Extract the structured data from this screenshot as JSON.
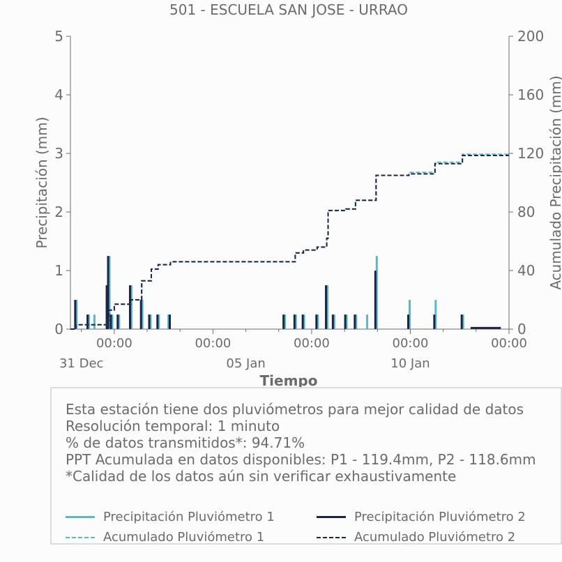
{
  "chart_data": {
    "type": "bar",
    "title": "501 - ESCUELA SAN JOSE - URRAO",
    "xlabel": "Tiempo",
    "ylabel_left": "Precipitación (mm)",
    "ylabel_right": "Acumulado Precipitación (mm)",
    "ylim_left": [
      0,
      5
    ],
    "ylim_right": [
      0,
      200
    ],
    "y_ticks_left": [
      "0",
      "1",
      "2",
      "3",
      "4",
      "5"
    ],
    "y_ticks_right": [
      "0",
      "40",
      "80",
      "120",
      "160",
      "200"
    ],
    "x_range_days": [
      "2023-12-30 16:00",
      "2024-01-13 00:00"
    ],
    "x_tick_labels_time": [
      "00:00",
      "00:00",
      "00:00",
      "00:00",
      "00:00"
    ],
    "x_tick_labels_date": [
      "31 Dec",
      "05 Jan",
      "10 Jan"
    ],
    "colors": {
      "p1": "#5bb8c4",
      "p2": "#1c2448"
    },
    "series": [
      {
        "name": "Precipitación Pluviómetro 1",
        "kind": "bar",
        "points": [
          [
            "2023-12-30 20:00",
            0.5
          ],
          [
            "2023-12-31 05:00",
            0.25
          ],
          [
            "2023-12-31 09:00",
            0.25
          ],
          [
            "2023-12-31 19:00",
            0.75
          ],
          [
            "2023-12-31 20:00",
            1.25
          ],
          [
            "2023-12-31 22:00",
            0.25
          ],
          [
            "2024-01-01 03:00",
            0.25
          ],
          [
            "2024-01-01 12:00",
            0.75
          ],
          [
            "2024-01-01 20:00",
            0.5
          ],
          [
            "2024-01-02 02:00",
            0.25
          ],
          [
            "2024-01-02 08:00",
            0.25
          ],
          [
            "2024-01-02 15:00",
            0.25
          ],
          [
            "2024-01-06 04:00",
            0.25
          ],
          [
            "2024-01-06 12:00",
            0.25
          ],
          [
            "2024-01-06 18:00",
            0.25
          ],
          [
            "2024-01-07 04:00",
            0.25
          ],
          [
            "2024-01-07 11:00",
            0.75
          ],
          [
            "2024-01-07 16:00",
            0.25
          ],
          [
            "2024-01-08 01:00",
            0.25
          ],
          [
            "2024-01-08 08:00",
            0.25
          ],
          [
            "2024-01-08 16:00",
            0.25
          ],
          [
            "2024-01-08 23:00",
            1.25
          ],
          [
            "2024-01-09 23:00",
            0.5
          ],
          [
            "2024-01-10 18:00",
            0.5
          ],
          [
            "2024-01-11 14:00",
            0.25
          ]
        ]
      },
      {
        "name": "Precipitación Pluviómetro 2",
        "kind": "bar",
        "points": [
          [
            "2023-12-30 20:00",
            0.5
          ],
          [
            "2023-12-31 05:00",
            0.25
          ],
          [
            "2023-12-31 19:00",
            0.75
          ],
          [
            "2023-12-31 20:00",
            1.25
          ],
          [
            "2023-12-31 22:00",
            0.25
          ],
          [
            "2024-01-01 03:00",
            0.25
          ],
          [
            "2024-01-01 12:00",
            0.75
          ],
          [
            "2024-01-01 20:00",
            0.5
          ],
          [
            "2024-01-02 02:00",
            0.25
          ],
          [
            "2024-01-02 08:00",
            0.25
          ],
          [
            "2024-01-02 17:00",
            0.25
          ],
          [
            "2024-01-06 04:00",
            0.25
          ],
          [
            "2024-01-06 12:00",
            0.25
          ],
          [
            "2024-01-06 18:00",
            0.25
          ],
          [
            "2024-01-07 04:00",
            0.25
          ],
          [
            "2024-01-07 11:00",
            0.75
          ],
          [
            "2024-01-07 16:00",
            0.25
          ],
          [
            "2024-01-08 01:00",
            0.25
          ],
          [
            "2024-01-08 08:00",
            0.25
          ],
          [
            "2024-01-08 23:00",
            1.0
          ],
          [
            "2024-01-09 23:00",
            0.25
          ],
          [
            "2024-01-10 18:00",
            0.25
          ],
          [
            "2024-01-11 14:00",
            0.25
          ]
        ]
      },
      {
        "name": "Acumulado Pluviómetro 1",
        "kind": "step",
        "points": [
          [
            "2023-12-30 16:00",
            0
          ],
          [
            "2023-12-30 20:00",
            3
          ],
          [
            "2023-12-31 19:00",
            6
          ],
          [
            "2023-12-31 20:00",
            13
          ],
          [
            "2024-01-01 00:00",
            17
          ],
          [
            "2024-01-01 12:00",
            20
          ],
          [
            "2024-01-01 20:00",
            33
          ],
          [
            "2024-01-02 03:00",
            41
          ],
          [
            "2024-01-02 08:00",
            44
          ],
          [
            "2024-01-02 17:00",
            46
          ],
          [
            "2024-01-06 04:00",
            46
          ],
          [
            "2024-01-06 12:00",
            52
          ],
          [
            "2024-01-06 18:00",
            54
          ],
          [
            "2024-01-07 04:00",
            56
          ],
          [
            "2024-01-07 11:00",
            62
          ],
          [
            "2024-01-07 12:00",
            81
          ],
          [
            "2024-01-08 01:00",
            82
          ],
          [
            "2024-01-08 08:00",
            88
          ],
          [
            "2024-01-08 23:00",
            105
          ],
          [
            "2024-01-09 23:00",
            107
          ],
          [
            "2024-01-10 18:00",
            114
          ],
          [
            "2024-01-11 14:00",
            119.4
          ],
          [
            "2024-01-13 00:00",
            119.4
          ]
        ]
      },
      {
        "name": "Acumulado Pluviómetro 2",
        "kind": "step",
        "points": [
          [
            "2023-12-30 16:00",
            0
          ],
          [
            "2023-12-30 20:00",
            3
          ],
          [
            "2023-12-31 19:00",
            6
          ],
          [
            "2023-12-31 20:00",
            13
          ],
          [
            "2024-01-01 00:00",
            17
          ],
          [
            "2024-01-01 12:00",
            20
          ],
          [
            "2024-01-01 20:00",
            33
          ],
          [
            "2024-01-02 03:00",
            41
          ],
          [
            "2024-01-02 08:00",
            44
          ],
          [
            "2024-01-02 17:00",
            46
          ],
          [
            "2024-01-06 04:00",
            46
          ],
          [
            "2024-01-06 12:00",
            52
          ],
          [
            "2024-01-06 18:00",
            54
          ],
          [
            "2024-01-07 04:00",
            56
          ],
          [
            "2024-01-07 11:00",
            62
          ],
          [
            "2024-01-07 12:00",
            81
          ],
          [
            "2024-01-08 01:00",
            82
          ],
          [
            "2024-01-08 08:00",
            88
          ],
          [
            "2024-01-08 23:00",
            105
          ],
          [
            "2024-01-09 23:00",
            106
          ],
          [
            "2024-01-10 18:00",
            113
          ],
          [
            "2024-01-11 14:00",
            118.6
          ],
          [
            "2024-01-13 00:00",
            118.6
          ]
        ]
      }
    ]
  },
  "info": {
    "lines": [
      "Esta estación tiene dos pluviómetros para mejor calidad de datos",
      "Resolución temporal: 1 minuto",
      "% de datos transmitidos*: 94.71%",
      "PPT Acumulada en datos disponibles: P1 - 119.4mm, P2 - 118.6mm",
      "*Calidad de los datos aún sin verificar exhaustivamente"
    ]
  },
  "legend": {
    "p1_bar": "Precipitación Pluviómetro 1",
    "p2_bar": "Precipitación Pluviómetro 2",
    "p1_cum": "Acumulado Pluviómetro 1",
    "p2_cum": "Acumulado Pluviómetro 2"
  }
}
